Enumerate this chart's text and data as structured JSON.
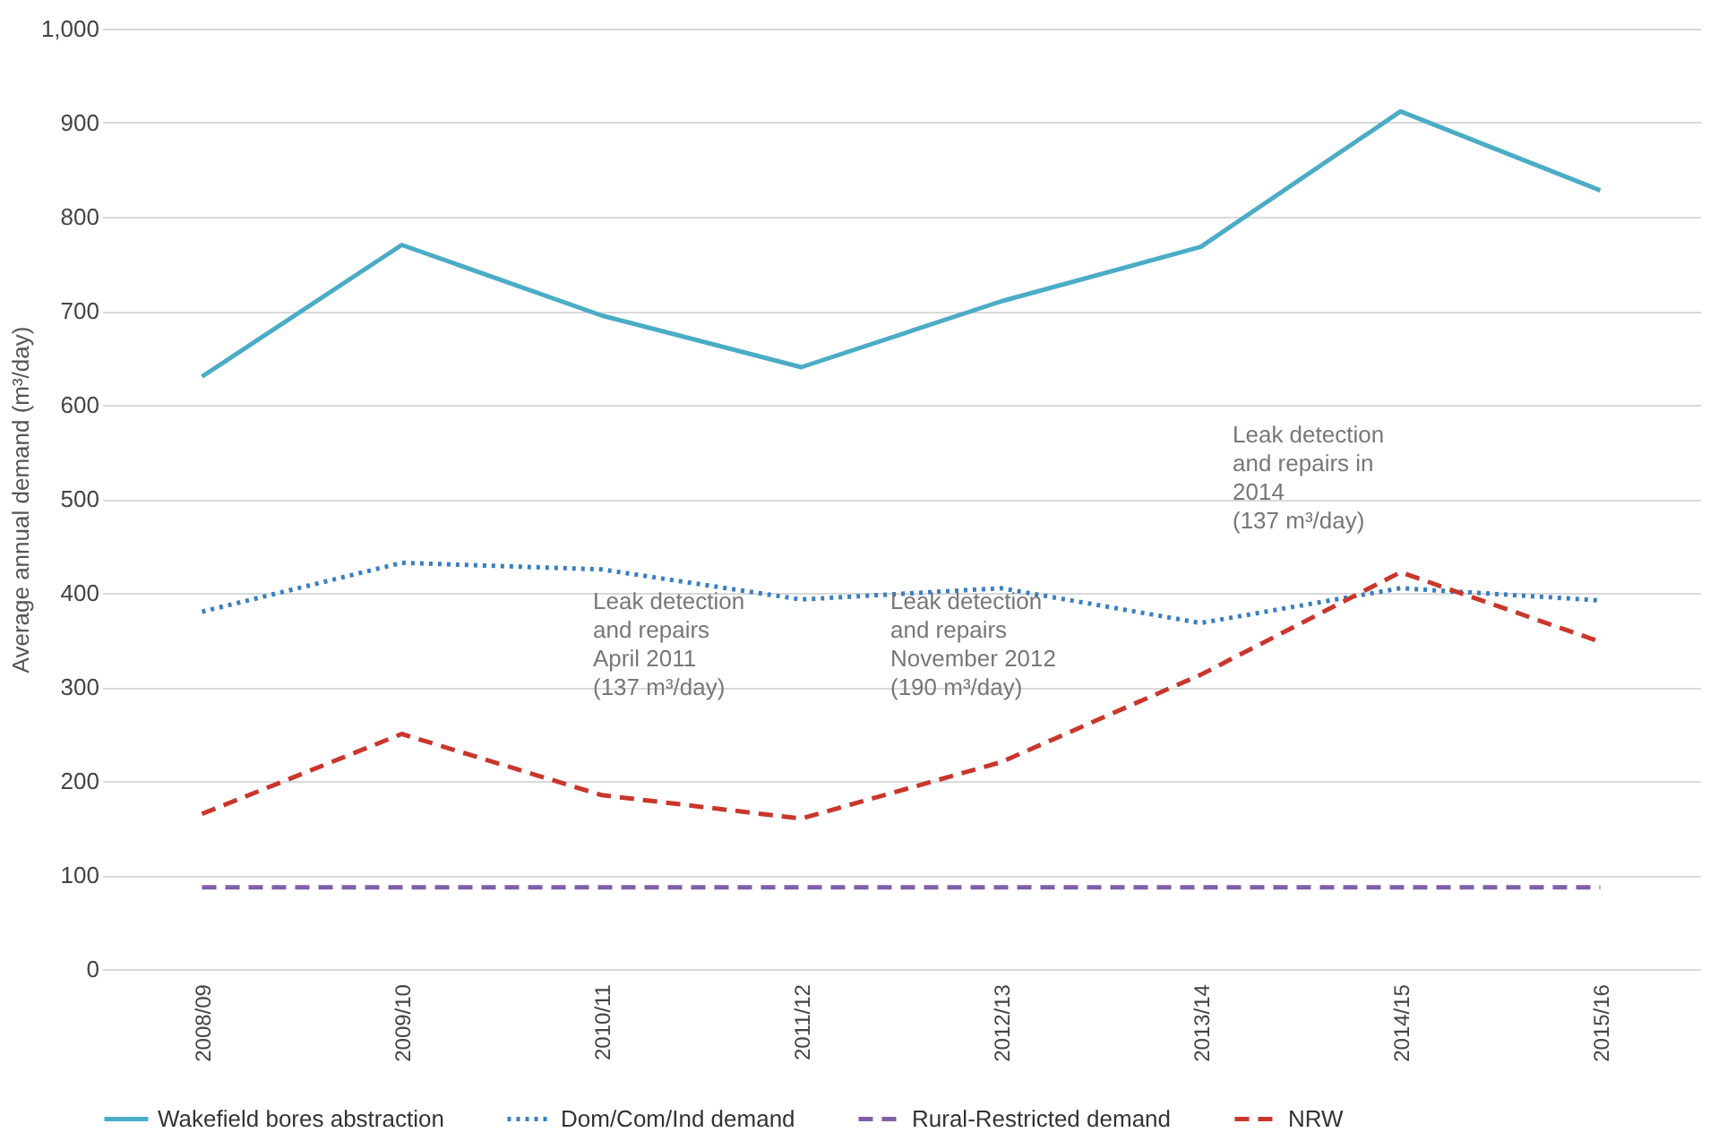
{
  "chart_data": {
    "type": "line",
    "ylabel": "Average annual demand (m³/day)",
    "categories": [
      "2008/09",
      "2009/10",
      "2010/11",
      "2011/12",
      "2012/13",
      "2013/14",
      "2014/15",
      "2015/16"
    ],
    "series": [
      {
        "name": "Wakefield bores abstraction",
        "color": "#4bacc6",
        "line_style": "solid",
        "values": [
          630,
          770,
          695,
          640,
          710,
          768,
          912,
          828
        ]
      },
      {
        "name": "Dom/Com/Ind demand",
        "color": "#3a7fc1",
        "line_style": "dotted",
        "values": [
          380,
          432,
          425,
          393,
          405,
          368,
          405,
          392
        ]
      },
      {
        "name": "Rural-Restricted demand",
        "color": "#7f5fa8",
        "line_style": "dashed",
        "values": [
          87,
          87,
          87,
          87,
          87,
          87,
          87,
          87
        ]
      },
      {
        "name": "NRW",
        "color": "#c9372c",
        "line_style": "dashed",
        "values": [
          165,
          250,
          185,
          160,
          220,
          313,
          422,
          348
        ]
      }
    ],
    "ylim": [
      0,
      1000
    ],
    "yticks": [
      0,
      100,
      200,
      300,
      400,
      500,
      600,
      700,
      800,
      900,
      {
        "value": 1000,
        "label": "1,000"
      }
    ],
    "grid": "y",
    "legend": "bottom",
    "marker": "none",
    "annotations": [
      "Leak detection\nand repairs\nApril 2011\n(137 m³/day)",
      "Leak detection\nand repairs\nNovember 2012\n(190 m³/day)",
      "Leak detection\nand repairs in\n2014\n(137 m³/day)"
    ]
  }
}
